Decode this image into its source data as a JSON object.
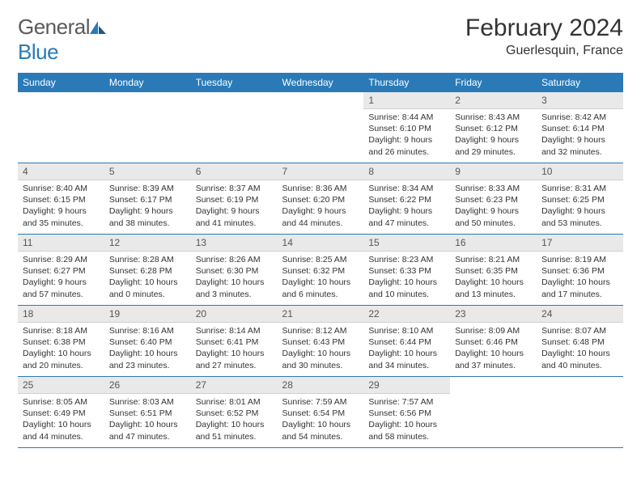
{
  "logo": {
    "word1": "General",
    "word2": "Blue"
  },
  "title": "February 2024",
  "location": "Guerlesquin, France",
  "colors": {
    "header_bg": "#2a7ab8",
    "header_fg": "#ffffff",
    "daynum_bg": "#e9e9e9",
    "daynum_fg": "#555555",
    "text": "#333333",
    "rule": "#2a7ab8",
    "logo_gray": "#5a5a5a",
    "logo_blue": "#2a7ab8"
  },
  "font": {
    "body_size": 10.5,
    "title_size": 30,
    "header_size": 12
  },
  "weekdays": [
    "Sunday",
    "Monday",
    "Tuesday",
    "Wednesday",
    "Thursday",
    "Friday",
    "Saturday"
  ],
  "first_weekday_index": 4,
  "days": [
    {
      "n": 1,
      "sunrise": "8:44 AM",
      "sunset": "6:10 PM",
      "dl_h": 9,
      "dl_m": 26
    },
    {
      "n": 2,
      "sunrise": "8:43 AM",
      "sunset": "6:12 PM",
      "dl_h": 9,
      "dl_m": 29
    },
    {
      "n": 3,
      "sunrise": "8:42 AM",
      "sunset": "6:14 PM",
      "dl_h": 9,
      "dl_m": 32
    },
    {
      "n": 4,
      "sunrise": "8:40 AM",
      "sunset": "6:15 PM",
      "dl_h": 9,
      "dl_m": 35
    },
    {
      "n": 5,
      "sunrise": "8:39 AM",
      "sunset": "6:17 PM",
      "dl_h": 9,
      "dl_m": 38
    },
    {
      "n": 6,
      "sunrise": "8:37 AM",
      "sunset": "6:19 PM",
      "dl_h": 9,
      "dl_m": 41
    },
    {
      "n": 7,
      "sunrise": "8:36 AM",
      "sunset": "6:20 PM",
      "dl_h": 9,
      "dl_m": 44
    },
    {
      "n": 8,
      "sunrise": "8:34 AM",
      "sunset": "6:22 PM",
      "dl_h": 9,
      "dl_m": 47
    },
    {
      "n": 9,
      "sunrise": "8:33 AM",
      "sunset": "6:23 PM",
      "dl_h": 9,
      "dl_m": 50
    },
    {
      "n": 10,
      "sunrise": "8:31 AM",
      "sunset": "6:25 PM",
      "dl_h": 9,
      "dl_m": 53
    },
    {
      "n": 11,
      "sunrise": "8:29 AM",
      "sunset": "6:27 PM",
      "dl_h": 9,
      "dl_m": 57
    },
    {
      "n": 12,
      "sunrise": "8:28 AM",
      "sunset": "6:28 PM",
      "dl_h": 10,
      "dl_m": 0
    },
    {
      "n": 13,
      "sunrise": "8:26 AM",
      "sunset": "6:30 PM",
      "dl_h": 10,
      "dl_m": 3
    },
    {
      "n": 14,
      "sunrise": "8:25 AM",
      "sunset": "6:32 PM",
      "dl_h": 10,
      "dl_m": 6
    },
    {
      "n": 15,
      "sunrise": "8:23 AM",
      "sunset": "6:33 PM",
      "dl_h": 10,
      "dl_m": 10
    },
    {
      "n": 16,
      "sunrise": "8:21 AM",
      "sunset": "6:35 PM",
      "dl_h": 10,
      "dl_m": 13
    },
    {
      "n": 17,
      "sunrise": "8:19 AM",
      "sunset": "6:36 PM",
      "dl_h": 10,
      "dl_m": 17
    },
    {
      "n": 18,
      "sunrise": "8:18 AM",
      "sunset": "6:38 PM",
      "dl_h": 10,
      "dl_m": 20
    },
    {
      "n": 19,
      "sunrise": "8:16 AM",
      "sunset": "6:40 PM",
      "dl_h": 10,
      "dl_m": 23
    },
    {
      "n": 20,
      "sunrise": "8:14 AM",
      "sunset": "6:41 PM",
      "dl_h": 10,
      "dl_m": 27
    },
    {
      "n": 21,
      "sunrise": "8:12 AM",
      "sunset": "6:43 PM",
      "dl_h": 10,
      "dl_m": 30
    },
    {
      "n": 22,
      "sunrise": "8:10 AM",
      "sunset": "6:44 PM",
      "dl_h": 10,
      "dl_m": 34
    },
    {
      "n": 23,
      "sunrise": "8:09 AM",
      "sunset": "6:46 PM",
      "dl_h": 10,
      "dl_m": 37
    },
    {
      "n": 24,
      "sunrise": "8:07 AM",
      "sunset": "6:48 PM",
      "dl_h": 10,
      "dl_m": 40
    },
    {
      "n": 25,
      "sunrise": "8:05 AM",
      "sunset": "6:49 PM",
      "dl_h": 10,
      "dl_m": 44
    },
    {
      "n": 26,
      "sunrise": "8:03 AM",
      "sunset": "6:51 PM",
      "dl_h": 10,
      "dl_m": 47
    },
    {
      "n": 27,
      "sunrise": "8:01 AM",
      "sunset": "6:52 PM",
      "dl_h": 10,
      "dl_m": 51
    },
    {
      "n": 28,
      "sunrise": "7:59 AM",
      "sunset": "6:54 PM",
      "dl_h": 10,
      "dl_m": 54
    },
    {
      "n": 29,
      "sunrise": "7:57 AM",
      "sunset": "6:56 PM",
      "dl_h": 10,
      "dl_m": 58
    }
  ]
}
